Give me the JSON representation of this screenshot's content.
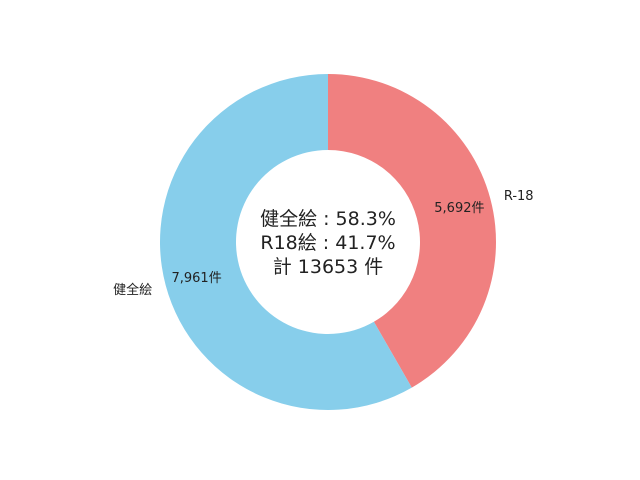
{
  "chart_data": {
    "type": "pie",
    "style": "donut",
    "direction": "clockwise",
    "start": "top",
    "slices": [
      {
        "label": "R-18",
        "value": 5692,
        "value_label": "5,692件",
        "color": "#f08080"
      },
      {
        "label": "健全絵",
        "value": 7961,
        "value_label": "7,961件",
        "color": "#87ceeb"
      }
    ],
    "center_lines": [
      "健全絵 : 58.3%",
      "R18絵 : 41.7%",
      "計 13653 件"
    ]
  }
}
